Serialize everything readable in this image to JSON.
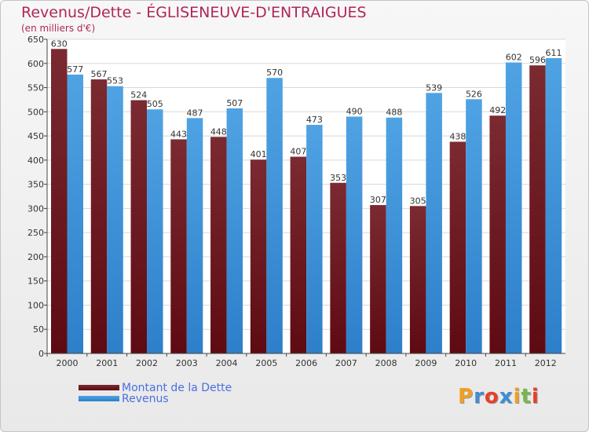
{
  "chart_data": {
    "type": "bar",
    "title": "Revenus/Dette - ÉGLISENEUVE-D'ENTRAIGUES",
    "subtitle": "(en milliers d'€)",
    "categories": [
      "2000",
      "2001",
      "2002",
      "2003",
      "2004",
      "2005",
      "2006",
      "2007",
      "2008",
      "2009",
      "2010",
      "2011",
      "2012"
    ],
    "series": [
      {
        "name": "Montant de la Dette",
        "values": [
          630,
          567,
          524,
          443,
          448,
          401,
          407,
          353,
          307,
          305,
          438,
          492,
          596
        ]
      },
      {
        "name": "Revenus",
        "values": [
          577,
          553,
          505,
          487,
          507,
          570,
          473,
          490,
          488,
          539,
          526,
          602,
          611
        ]
      }
    ],
    "ylim": [
      0,
      650
    ],
    "yticks": [
      0,
      50,
      100,
      150,
      200,
      250,
      300,
      350,
      400,
      450,
      500,
      550,
      600,
      650
    ],
    "grid": true,
    "legend_position": "bottom-left",
    "colors": {
      "debt": "#7a2a30",
      "debt_dark": "#5e0a12",
      "revenue": "#4fa3e3",
      "revenue_dark": "#2d7fca",
      "title": "#b0265a",
      "legend_text": "#4a6fe0"
    }
  },
  "legend": {
    "debt_label": "Montant de la Dette",
    "revenue_label": "Revenus"
  },
  "logo": {
    "text_letters": [
      "P",
      "r",
      "o",
      "x",
      "i",
      "t",
      "i"
    ],
    "letter_colors": [
      "#f0a020",
      "#3c8ed8",
      "#e8402a",
      "#3c8ed8",
      "#f0a020",
      "#78b84a",
      "#e8402a"
    ]
  }
}
